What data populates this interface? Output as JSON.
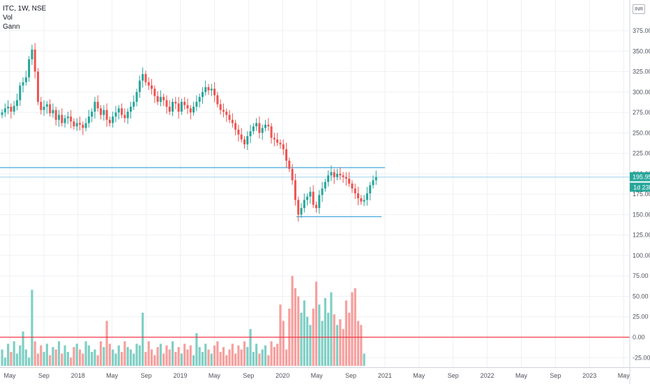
{
  "legend": {
    "symbol": "ITC, 1W, NSE",
    "indicator_1": "Vol",
    "indicator_2": "Gann"
  },
  "currency_badge": "INR",
  "price_tag": "195.95",
  "countdown_tag": "1d 23h",
  "colors": {
    "up": "#26a69a",
    "down": "#ef5350",
    "up_volume": "#7fcfc4",
    "down_volume": "#f6a09e",
    "level_line": "#2e9fd8",
    "zero_line": "#f23645",
    "grid": "#eef0f3",
    "tag_bg": "#26a69a"
  },
  "chart_data": {
    "type": "candlestick",
    "title": "",
    "y_axis": {
      "min": -35,
      "max": 400,
      "ticks": [
        "375.00",
        "350.00",
        "325.00",
        "300.00",
        "275.00",
        "250.00",
        "225.00",
        "200.00",
        "175.00",
        "150.00",
        "125.00",
        "100.00",
        "75.00",
        "50.00",
        "25.00",
        "0.00",
        "-25.00"
      ]
    },
    "x_axis": {
      "ticks": [
        "May",
        "Sep",
        "2018",
        "May",
        "Sep",
        "2019",
        "May",
        "Sep",
        "2020",
        "May",
        "Sep",
        "2021",
        "May",
        "Sep",
        "2022",
        "May",
        "Sep",
        "2023",
        "May"
      ]
    },
    "grid": true,
    "horizontal_levels": [
      207.5,
      147.5
    ],
    "volume_zero_line": 0,
    "last_price": 195.95,
    "price_series_weekly_close": [
      275,
      280,
      282,
      276,
      283,
      290,
      308,
      312,
      318,
      340,
      352,
      325,
      288,
      278,
      282,
      285,
      274,
      278,
      266,
      272,
      262,
      268,
      270,
      264,
      258,
      262,
      260,
      256,
      262,
      270,
      276,
      288,
      280,
      272,
      278,
      266,
      262,
      270,
      275,
      280,
      272,
      268,
      276,
      282,
      288,
      300,
      314,
      322,
      312,
      308,
      304,
      295,
      288,
      294,
      290,
      282,
      276,
      288,
      286,
      276,
      288,
      284,
      280,
      275,
      282,
      288,
      294,
      300,
      306,
      302,
      304,
      296,
      285,
      278,
      276,
      272,
      266,
      262,
      254,
      248,
      242,
      236,
      246,
      252,
      258,
      262,
      250,
      256,
      260,
      258,
      244,
      242,
      238,
      236,
      230,
      216,
      206,
      192,
      168,
      150,
      158,
      168,
      172,
      178,
      162,
      158,
      174,
      182,
      190,
      198,
      202,
      196,
      200,
      198,
      196,
      194,
      188,
      182,
      176,
      170,
      166,
      168,
      176,
      186,
      192,
      195.95
    ],
    "volume_series": [
      -15,
      -25,
      -8,
      -18,
      -5,
      -20,
      -10,
      7,
      -15,
      -25,
      58,
      -5,
      -20,
      -10,
      -18,
      -8,
      -22,
      -12,
      -15,
      -5,
      -20,
      -10,
      -18,
      -25,
      -12,
      -8,
      -15,
      -20,
      -5,
      -10,
      -18,
      -15,
      -22,
      -5,
      -12,
      20,
      -8,
      -15,
      -20,
      -10,
      -18,
      -5,
      -12,
      -15,
      -20,
      -8,
      -10,
      30,
      -18,
      -5,
      -15,
      -22,
      -12,
      -8,
      -20,
      -10,
      -15,
      -5,
      -18,
      -12,
      -20,
      -8,
      -15,
      -10,
      -22,
      5,
      -12,
      -18,
      -8,
      -15,
      -20,
      -10,
      -5,
      -18,
      -12,
      -22,
      -15,
      -8,
      -20,
      -10,
      -15,
      -5,
      -12,
      10,
      -18,
      -8,
      -20,
      -15,
      -10,
      -22,
      -5,
      -12,
      -8,
      40,
      20,
      -15,
      35,
      75,
      60,
      50,
      30,
      45,
      25,
      15,
      35,
      68,
      40,
      20,
      48,
      30,
      55,
      28,
      15,
      22,
      10,
      45,
      30,
      55,
      60,
      20,
      15,
      -20
    ]
  }
}
